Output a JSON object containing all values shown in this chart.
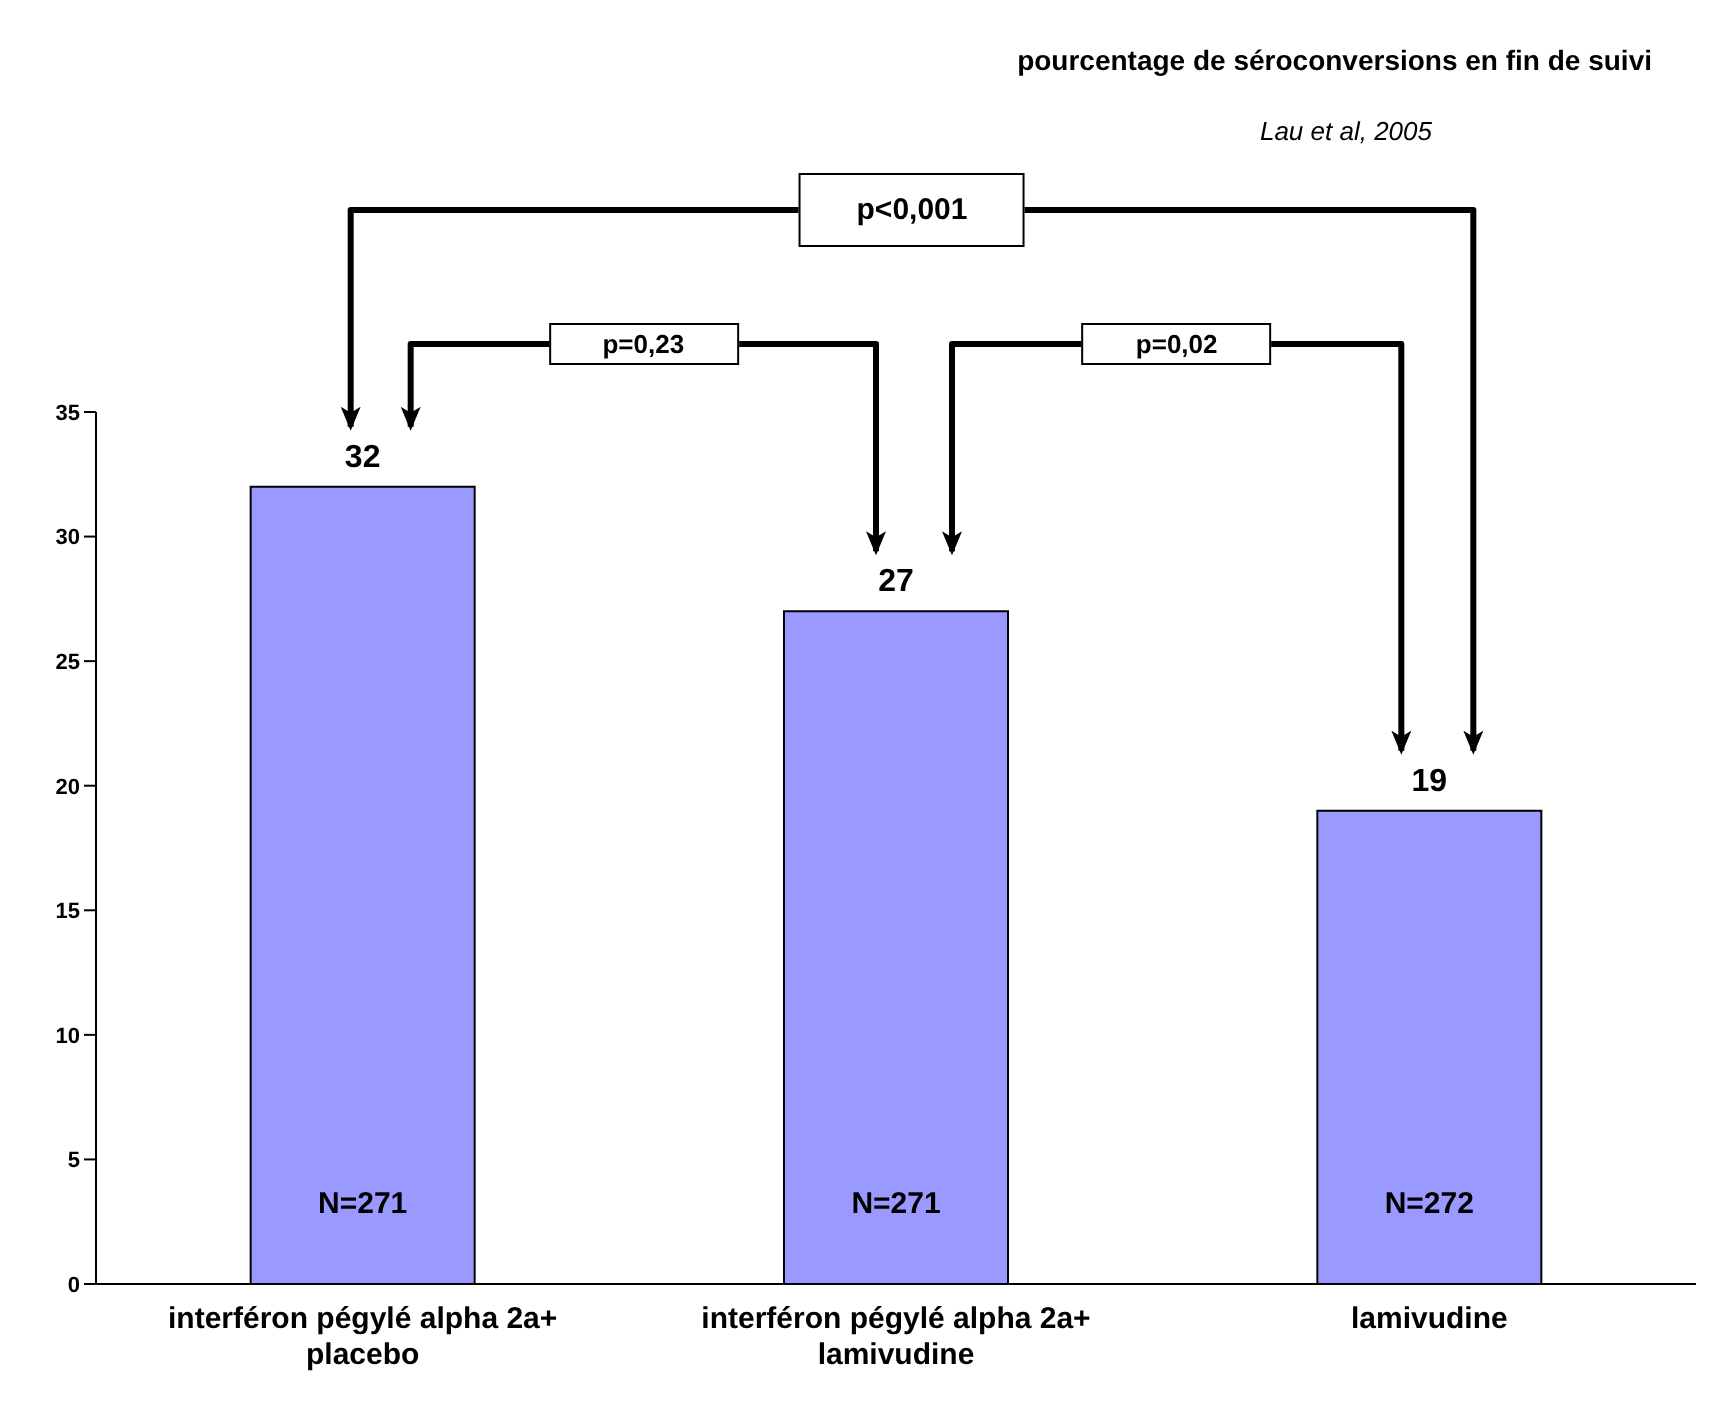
{
  "chart_data": {
    "type": "bar",
    "title": "pourcentage de séroconversions en fin de suivi",
    "categories": [
      "interféron pégylé alpha 2a+ placebo",
      "interféron pégylé alpha 2a+ lamivudine",
      "lamivudine"
    ],
    "values": [
      32,
      27,
      19
    ],
    "color": "#9999ff",
    "data_labels": true,
    "grid": false,
    "ylim": [
      0,
      35
    ],
    "yticks": [
      0,
      5,
      10,
      15,
      20,
      25,
      30,
      35
    ],
    "annotations": [
      "Lau et al, 2005",
      "p<0,001",
      "p=0,23",
      "p=0,02",
      "N=271",
      "N=271",
      "N=272"
    ]
  }
}
